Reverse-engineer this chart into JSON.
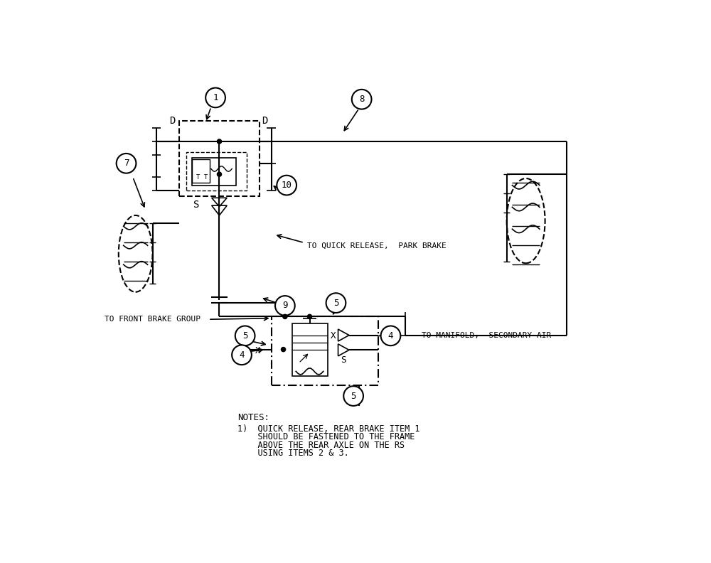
{
  "bg_color": "#ffffff",
  "line_color": "#000000",
  "label_to_quick_release": "TO QUICK RELEASE,  PARK BRAKE",
  "label_to_front_brake": "TO FRONT BRAKE GROUP",
  "label_to_manifold": "TO MANIFOLD,  SECONDARY AIR",
  "notes_title": "NOTES:",
  "notes_line1": "1)  QUICK RELEASE, REAR BRAKE ITEM 1",
  "notes_line2": "    SHOULD BE FASTENED TO THE FRAME",
  "notes_line3": "    ABOVE THE REAR AXLE ON THE RS",
  "notes_line4": "    USING ITEMS 2 & 3."
}
